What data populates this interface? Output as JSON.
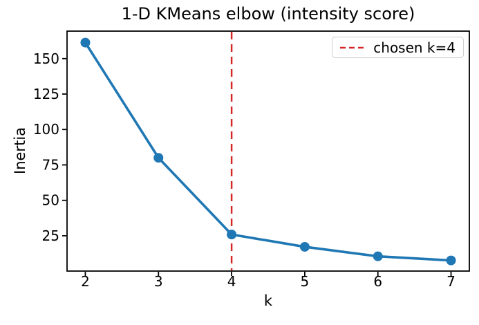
{
  "figure": {
    "background": "#ffffff",
    "text_color": "#000000",
    "spine_color": "#000000",
    "legend_border_color": "#cccccc"
  },
  "chart_data": {
    "type": "line",
    "title": "1-D KMeans elbow (intensity score)",
    "xlabel": "k",
    "ylabel": "Inertia",
    "x": [
      2,
      3,
      4,
      5,
      6,
      7
    ],
    "series": [
      {
        "name": "inertia",
        "color": "#1f77b4",
        "marker": "circle",
        "values": [
          161.3,
          80.0,
          25.9,
          17.2,
          10.5,
          7.6
        ]
      }
    ],
    "vline": {
      "x": 4,
      "color": "#d62728",
      "linestyle": "dashed",
      "label": "chosen k=4"
    },
    "xticks": [
      2,
      3,
      4,
      5,
      6,
      7
    ],
    "yticks": [
      25,
      50,
      75,
      100,
      125,
      150
    ],
    "xlim": [
      1.75,
      7.25
    ],
    "ylim": [
      0.1,
      169.4
    ],
    "grid": false,
    "legend": {
      "position": "upper-right",
      "entries": [
        {
          "label": "chosen k=4",
          "color": "#d62728",
          "linestyle": "dashed"
        }
      ]
    }
  }
}
